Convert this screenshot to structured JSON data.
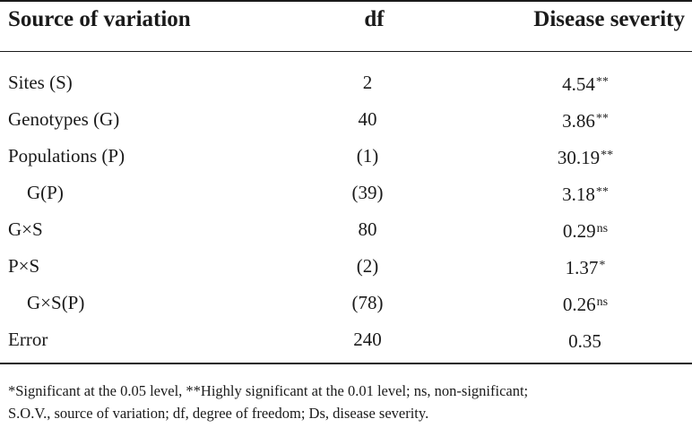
{
  "table": {
    "headers": {
      "source": "Source of variation",
      "df": "df",
      "ds": "Disease severity"
    },
    "rows": [
      {
        "source": "Sites (S)",
        "df": "2",
        "value": "4.54",
        "sig": "**",
        "indent": false
      },
      {
        "source": "Genotypes (G)",
        "df": "40",
        "value": "3.86",
        "sig": "**",
        "indent": false
      },
      {
        "source": "Populations (P)",
        "df": "(1)",
        "value": "30.19",
        "sig": "**",
        "indent": false
      },
      {
        "source": "G(P)",
        "df": "(39)",
        "value": "3.18",
        "sig": "**",
        "indent": true
      },
      {
        "source": "G×S",
        "df": "80",
        "value": "0.29",
        "sig": "ns",
        "indent": false
      },
      {
        "source": "P×S",
        "df": "(2)",
        "value": "1.37",
        "sig": "*",
        "indent": false
      },
      {
        "source": "G×S(P)",
        "df": "(78)",
        "value": "0.26",
        "sig": "ns",
        "indent": true
      },
      {
        "source": "Error",
        "df": "240",
        "value": "0.35",
        "sig": "",
        "indent": false
      }
    ]
  },
  "footnote": {
    "line1": "*Significant at the 0.05 level, **Highly significant at the 0.01 level; ns, non-significant;",
    "line2": "S.O.V., source of variation; df, degree of freedom; Ds, disease severity."
  }
}
